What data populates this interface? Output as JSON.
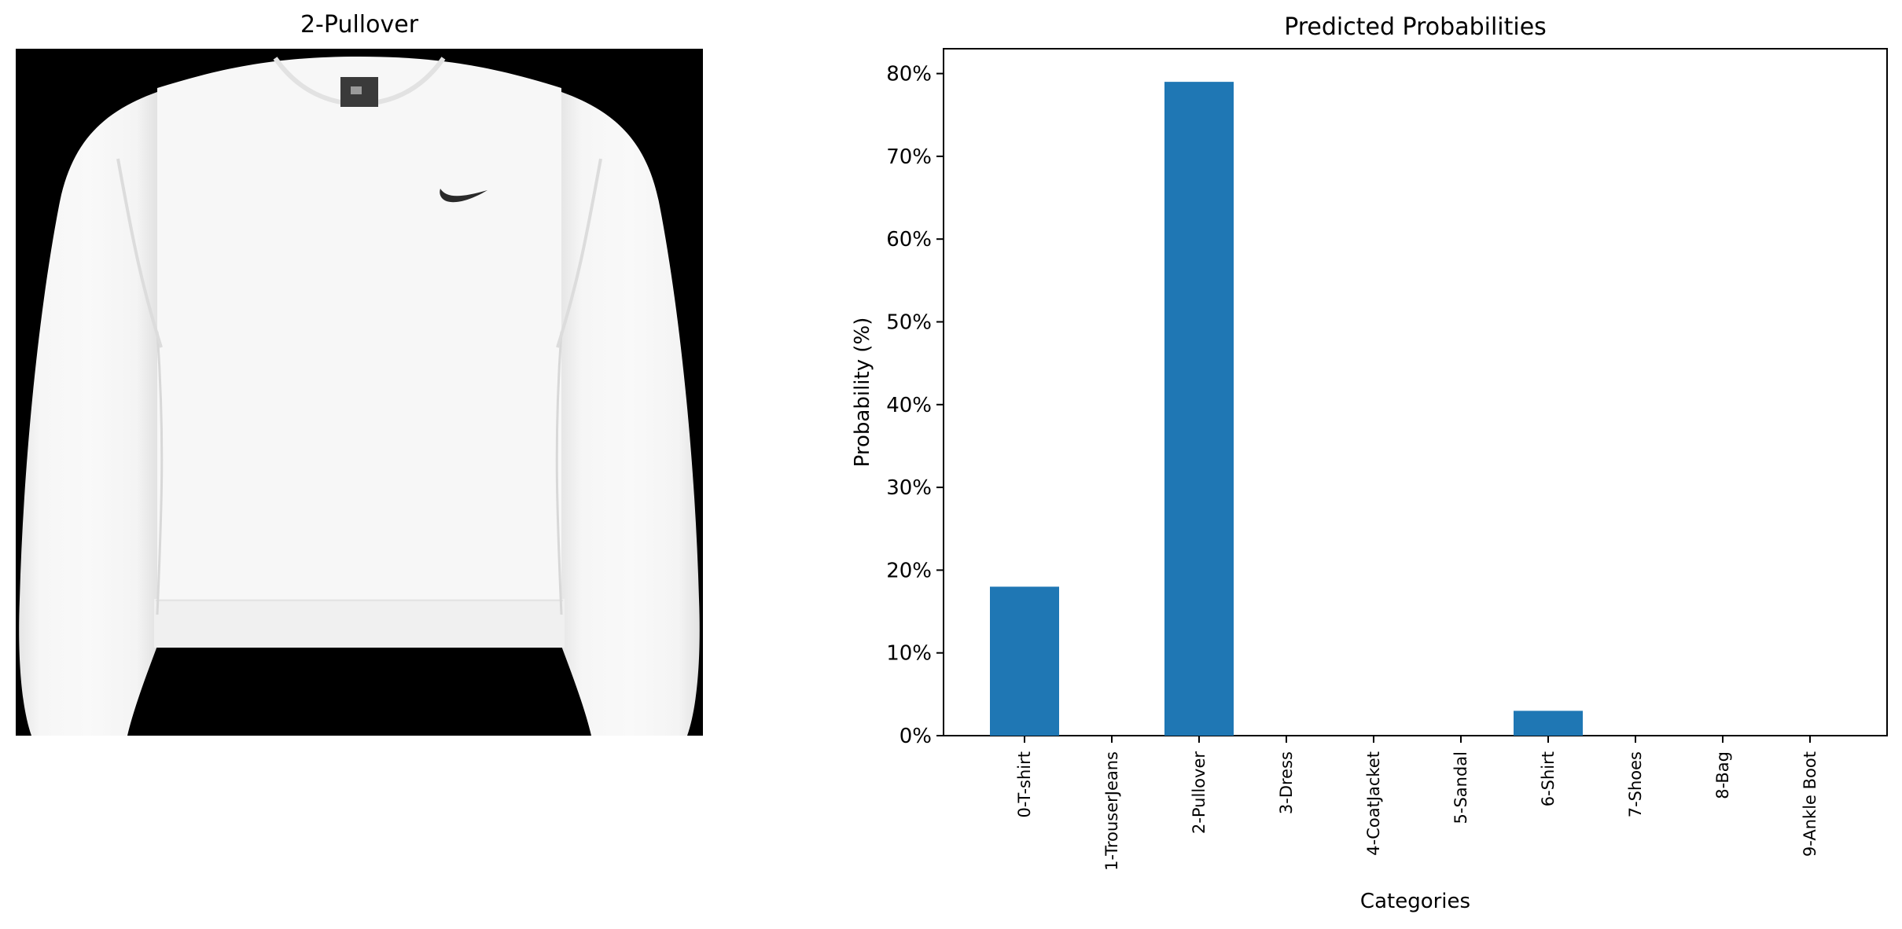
{
  "image_panel": {
    "title": "2-Pullover",
    "image_description_icon": "white-pullover-sweatshirt-icon"
  },
  "chart_data": {
    "type": "bar",
    "title": "Predicted Probabilities",
    "xlabel": "Categories",
    "ylabel": "Probability (%)",
    "categories": [
      "0-T-shirt",
      "1-TrouserJeans",
      "2-Pullover",
      "3-Dress",
      "4-CoatJacket",
      "5-Sandal",
      "6-Shirt",
      "7-Shoes",
      "8-Bag",
      "9-Ankle Boot"
    ],
    "values": [
      18,
      0,
      79,
      0,
      0,
      0,
      3,
      0,
      0,
      0
    ],
    "yticks": [
      "0%",
      "10%",
      "20%",
      "30%",
      "40%",
      "50%",
      "60%",
      "70%",
      "80%"
    ],
    "ylim": [
      0,
      83
    ],
    "bar_color": "#1f77b4",
    "grid": false
  }
}
